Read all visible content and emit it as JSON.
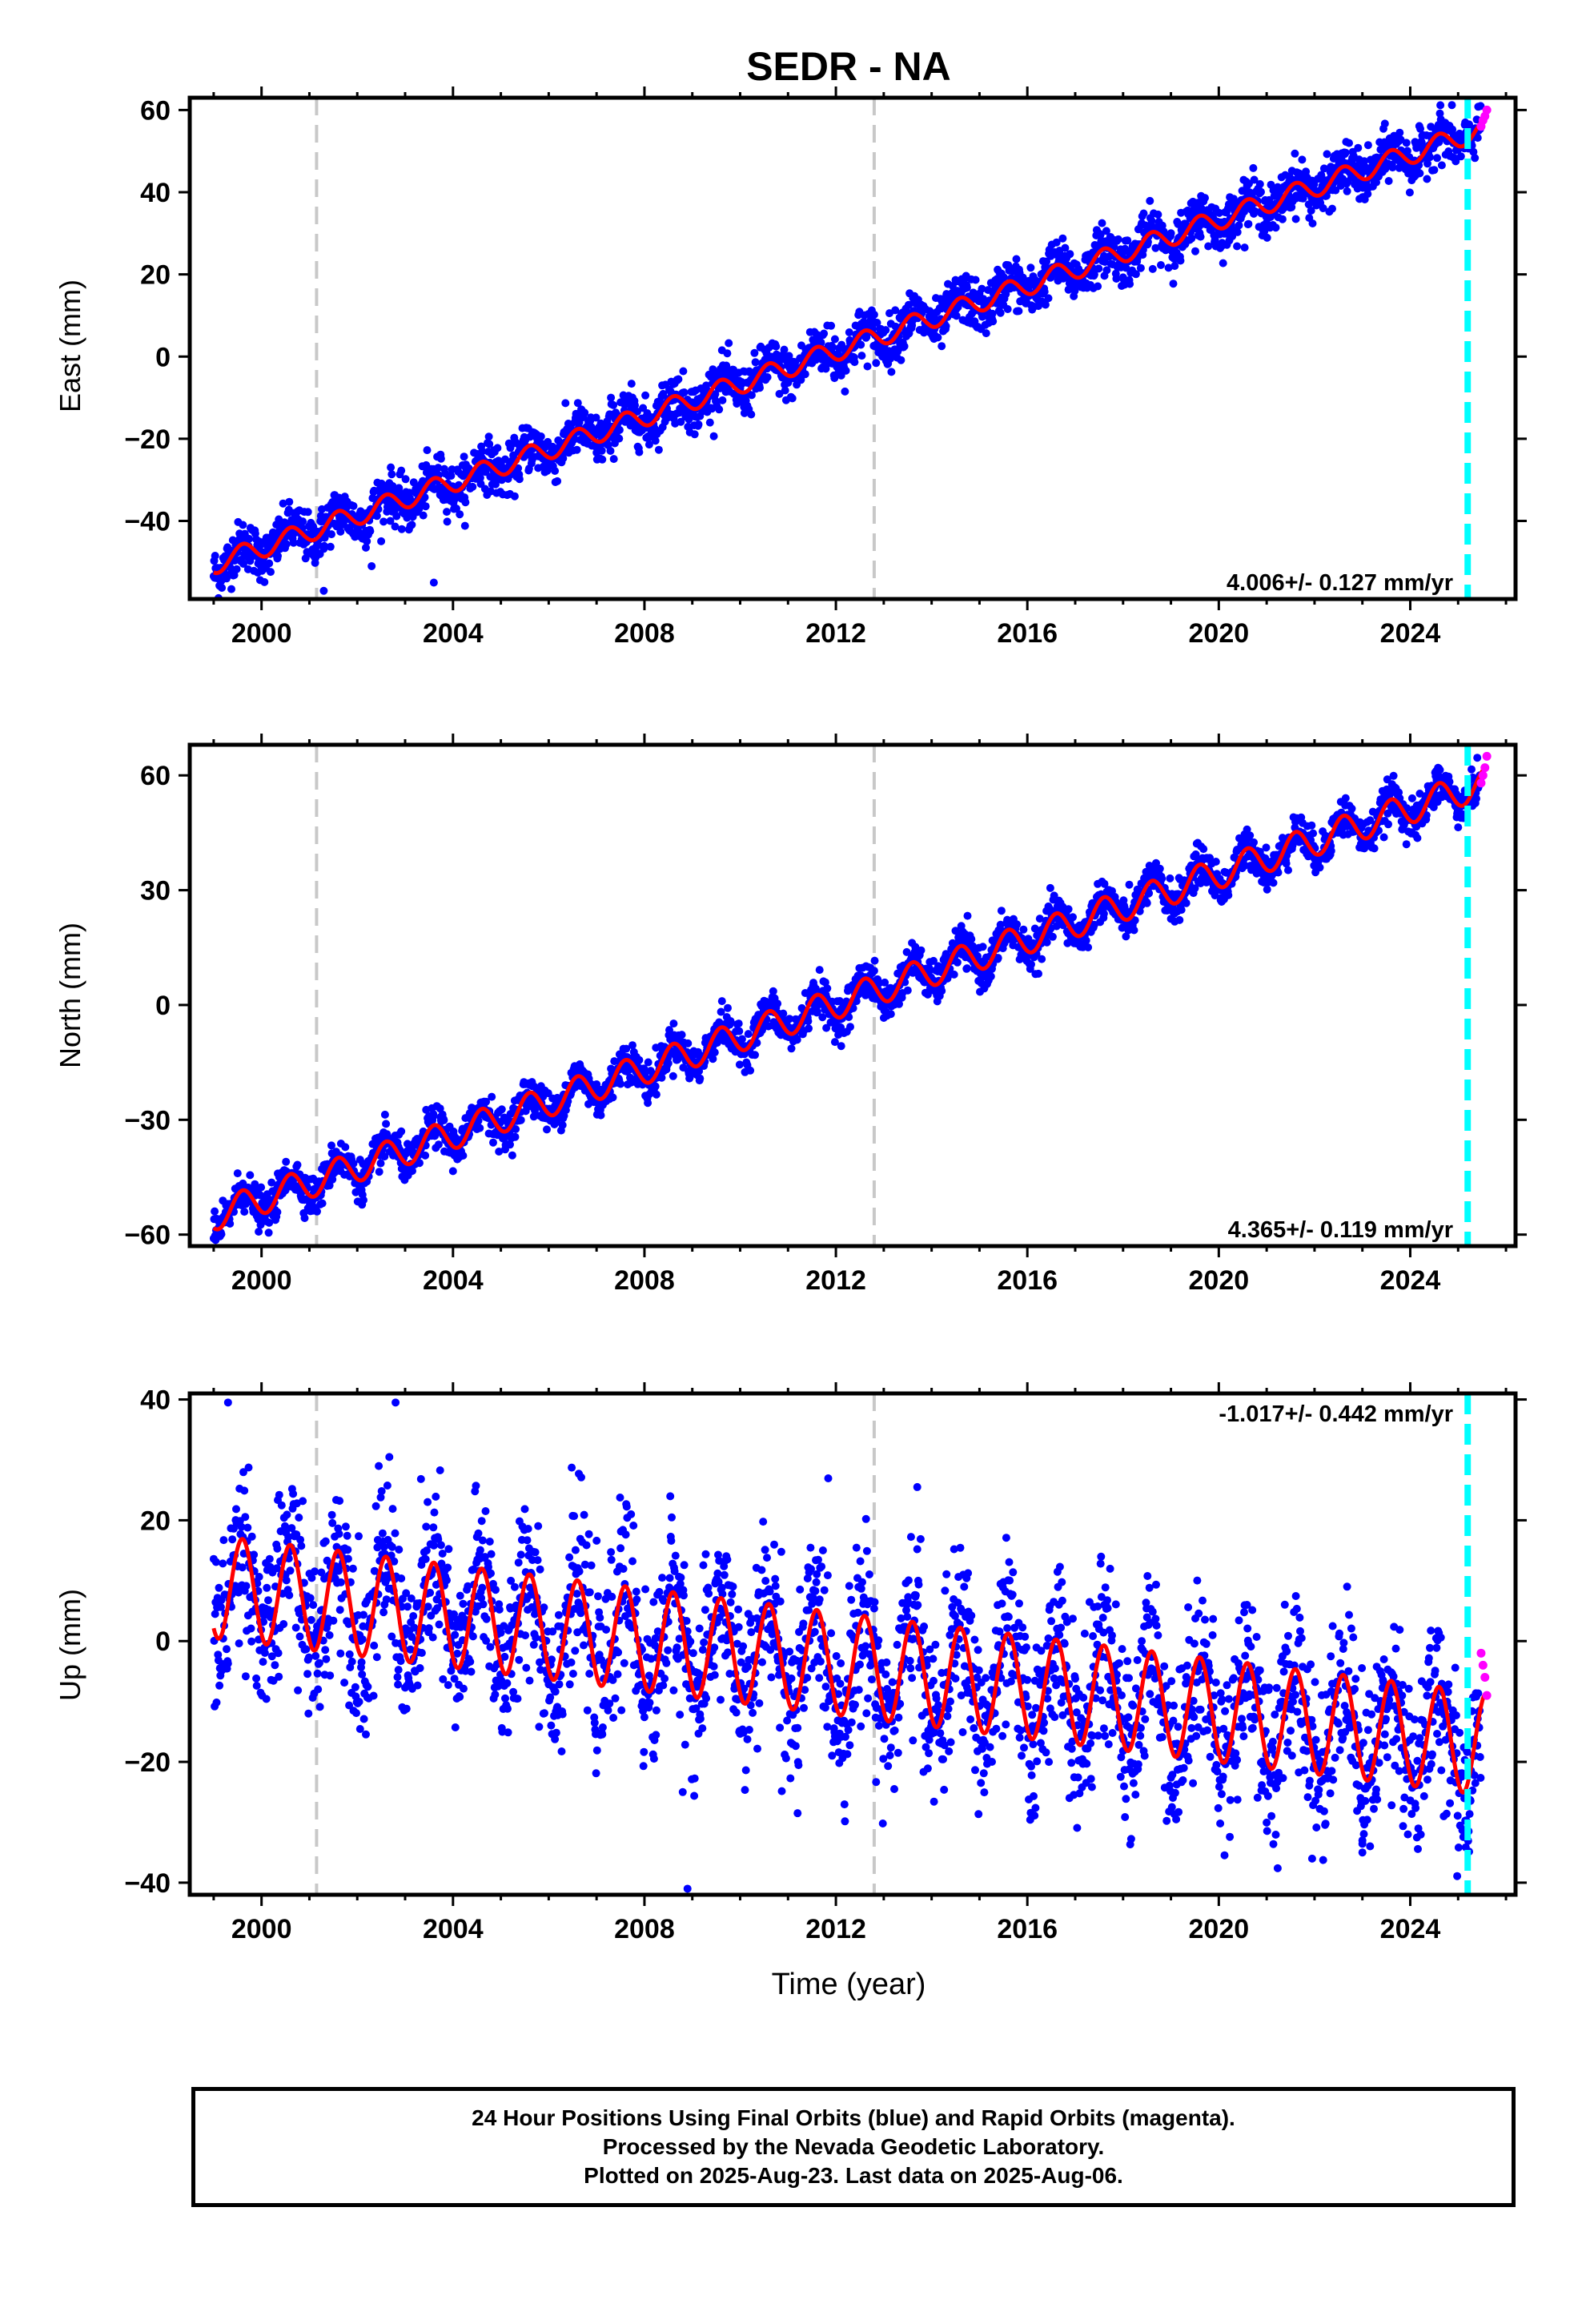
{
  "figure": {
    "title": "SEDR - NA",
    "x_axis_label": "Time (year)",
    "footer_lines": [
      "24 Hour Positions Using Final Orbits (blue) and Rapid Orbits (magenta).",
      "Processed by the Nevada Geodetic Laboratory.",
      "Plotted on 2025-Aug-23. Last data on 2025-Aug-06."
    ]
  },
  "colors": {
    "final_orbits": "#0000ff",
    "rapid_orbits": "#ff00ff",
    "model_fit": "#ff0000",
    "event_line_gray": "#c8c8c8",
    "event_line_cyan": "#00ffff"
  },
  "chart_data": [
    {
      "type": "scatter",
      "component": "East",
      "ylabel": "East (mm)",
      "xlim": [
        1998.5,
        2026.2
      ],
      "ylim": [
        -59,
        63
      ],
      "xticks": [
        2000,
        2004,
        2008,
        2012,
        2016,
        2020,
        2024
      ],
      "yticks": [
        -40,
        -20,
        0,
        20,
        40,
        60
      ],
      "rate_text": "4.006+/- 0.127 mm/yr",
      "rate_position": "bottom-right",
      "trend": {
        "start_year": 1999.0,
        "end_year": 2025.55,
        "start_value": -50.5,
        "end_value": 55.5
      },
      "seasonal_amplitude": 2.5,
      "scatter_noise": 3.0,
      "event_lines": [
        {
          "year": 2001.15,
          "color": "gray"
        },
        {
          "year": 2012.8,
          "color": "gray"
        },
        {
          "year": 2025.2,
          "color": "cyan"
        }
      ],
      "rapid_points": [
        [
          2025.48,
          56
        ],
        [
          2025.52,
          57.5
        ],
        [
          2025.56,
          58.5
        ],
        [
          2025.6,
          60
        ]
      ],
      "outliers": [
        [
          2001.3,
          -57
        ],
        [
          2002.3,
          -51
        ],
        [
          2003.6,
          -55
        ],
        [
          2007.3,
          -10
        ],
        [
          2011.9,
          7.5
        ],
        [
          2015.9,
          17.5
        ]
      ]
    },
    {
      "type": "scatter",
      "component": "North",
      "ylabel": "North (mm)",
      "xlim": [
        1998.5,
        2026.2
      ],
      "ylim": [
        -63,
        68
      ],
      "xticks": [
        2000,
        2004,
        2008,
        2012,
        2016,
        2020,
        2024
      ],
      "yticks": [
        -60,
        -30,
        0,
        30,
        60
      ],
      "rate_text": "4.365+/- 0.119 mm/yr",
      "rate_position": "bottom-right",
      "trend": {
        "start_year": 1999.0,
        "end_year": 2025.55,
        "start_value": -55,
        "end_value": 58
      },
      "seasonal_amplitude": 4.0,
      "scatter_noise": 2.5,
      "event_lines": [
        {
          "year": 2001.15,
          "color": "gray"
        },
        {
          "year": 2012.8,
          "color": "gray"
        },
        {
          "year": 2025.2,
          "color": "cyan"
        }
      ],
      "rapid_points": [
        [
          2025.48,
          58
        ],
        [
          2025.52,
          60
        ],
        [
          2025.56,
          62
        ],
        [
          2025.6,
          65
        ]
      ],
      "outliers": [
        [
          2004.0,
          -38
        ],
        [
          2008.2,
          -22
        ],
        [
          2011.8,
          -6
        ],
        [
          2016.3,
          12
        ]
      ]
    },
    {
      "type": "scatter",
      "component": "Up",
      "ylabel": "Up (mm)",
      "xlim": [
        1998.5,
        2026.2
      ],
      "ylim": [
        -42,
        41
      ],
      "xticks": [
        2000,
        2004,
        2008,
        2012,
        2016,
        2020,
        2024
      ],
      "yticks": [
        -40,
        -20,
        0,
        20,
        40
      ],
      "rate_text": "-1.017+/- 0.442 mm/yr",
      "rate_position": "top-right",
      "trend": {
        "start_year": 1999.0,
        "end_year": 2025.55,
        "start_value": 9,
        "end_value": -17
      },
      "seasonal_amplitude": 8.5,
      "scatter_noise": 7.0,
      "event_lines": [
        {
          "year": 2001.15,
          "color": "gray"
        },
        {
          "year": 2012.8,
          "color": "gray"
        },
        {
          "year": 2025.2,
          "color": "cyan"
        }
      ],
      "rapid_points": [
        [
          2025.48,
          -2
        ],
        [
          2025.52,
          -4
        ],
        [
          2025.56,
          -6
        ],
        [
          2025.6,
          -9
        ]
      ],
      "outliers": [
        [
          1999.3,
          39.5
        ],
        [
          2002.8,
          39.5
        ],
        [
          2008.9,
          -41
        ],
        [
          2008.8,
          -25
        ],
        [
          2011.2,
          -28.5
        ],
        [
          2013.7,
          25.5
        ],
        [
          2023.0,
          -33
        ],
        [
          2023.0,
          -35
        ],
        [
          2024.7,
          -29
        ]
      ]
    }
  ]
}
